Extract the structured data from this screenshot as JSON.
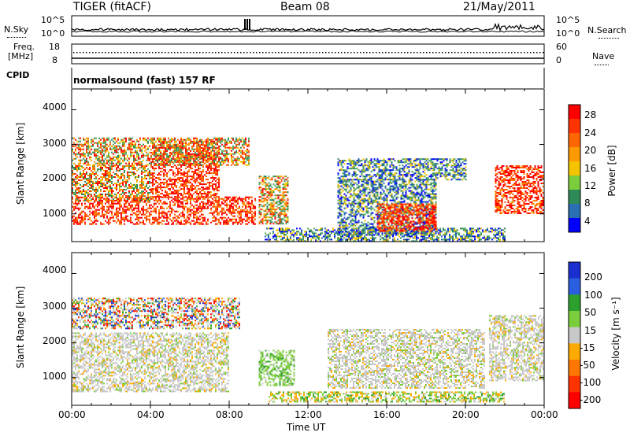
{
  "header": {
    "radar": "TIGER (fitACF)",
    "beam": "Beam 08",
    "date": "21/May/2011"
  },
  "aux": {
    "nsky_label": "N.Sky",
    "nsearch_label": "N.Search",
    "freq_label_1": "Freq.",
    "freq_label_2": "[MHz]",
    "nave_label": "Nave",
    "cpid_label": "CPID",
    "nsky_ticks": [
      "10^5",
      "10^0"
    ],
    "nsearch_ticks": [
      "10^5",
      "10^0"
    ],
    "freq_ticks": [
      "18",
      "8"
    ],
    "nave_ticks": [
      "60",
      "0"
    ],
    "cpid_text": "normalsound (fast) 157 RF"
  },
  "axes": {
    "xlabel": "Time UT",
    "xticks": [
      "00:00",
      "04:00",
      "08:00",
      "12:00",
      "16:00",
      "20:00",
      "00:00"
    ],
    "ylabel_top": "Slant Range [km]",
    "ylabel_bottom": "Slant Range [km]",
    "yticks": [
      "4000",
      "3000",
      "2000",
      "1000"
    ]
  },
  "power_bar": {
    "label": "Power [dB]",
    "ticks": [
      "28",
      "24",
      "20",
      "16",
      "12",
      "8",
      "4"
    ]
  },
  "velocity_bar": {
    "label": "Velocity [m s⁻¹]",
    "ticks": [
      "200",
      "100",
      "50",
      "15",
      "-15",
      "-50",
      "-100",
      "-200"
    ]
  },
  "chart_data": {
    "type": "heatmap",
    "x_range_hours": [
      0,
      24
    ],
    "y_range_km": [
      200,
      4600
    ],
    "power_colors": [
      "#0000ff",
      "#1b5fb4",
      "#2e8b57",
      "#57a85c",
      "#f5c400",
      "#ff8c00",
      "#ff5500",
      "#ff0000"
    ],
    "velocity_colors": [
      "#1b2fd0",
      "#2a5fe0",
      "#2ca02c",
      "#7ccd3c",
      "#c8c8c8",
      "#ffaa00",
      "#ff7700",
      "#ff3300",
      "#ff0000"
    ],
    "power_regions": [
      {
        "t": [
          0,
          9.3
        ],
        "r": [
          700,
          1500
        ],
        "level": "strong"
      },
      {
        "t": [
          0,
          4
        ],
        "r": [
          1400,
          2400
        ],
        "level": "medium"
      },
      {
        "t": [
          4,
          7.5
        ],
        "r": [
          1500,
          3100
        ],
        "level": "strong"
      },
      {
        "t": [
          0,
          9
        ],
        "r": [
          2400,
          3200
        ],
        "level": "medium"
      },
      {
        "t": [
          9.5,
          11
        ],
        "r": [
          700,
          2100
        ],
        "level": "medium"
      },
      {
        "t": [
          9.8,
          22
        ],
        "r": [
          200,
          600
        ],
        "level": "weak"
      },
      {
        "t": [
          13.5,
          18.5
        ],
        "r": [
          400,
          2000
        ],
        "level": "weak"
      },
      {
        "t": [
          15.5,
          18.5
        ],
        "r": [
          500,
          1300
        ],
        "level": "strong"
      },
      {
        "t": [
          13.5,
          20
        ],
        "r": [
          2000,
          2600
        ],
        "level": "weak"
      },
      {
        "t": [
          21.5,
          24
        ],
        "r": [
          1000,
          2400
        ],
        "level": "strong"
      }
    ],
    "velocity_regions": [
      {
        "t": [
          0,
          8
        ],
        "r": [
          600,
          2300
        ],
        "v": "grey"
      },
      {
        "t": [
          0,
          8.5
        ],
        "r": [
          2400,
          3300
        ],
        "v": "mixed"
      },
      {
        "t": [
          9.5,
          11.3
        ],
        "r": [
          800,
          1800
        ],
        "v": "green"
      },
      {
        "t": [
          10,
          22
        ],
        "r": [
          300,
          600
        ],
        "v": "green-orange"
      },
      {
        "t": [
          13,
          21
        ],
        "r": [
          700,
          2400
        ],
        "v": "grey"
      },
      {
        "t": [
          21.2,
          24
        ],
        "r": [
          900,
          2800
        ],
        "v": "grey"
      }
    ]
  }
}
